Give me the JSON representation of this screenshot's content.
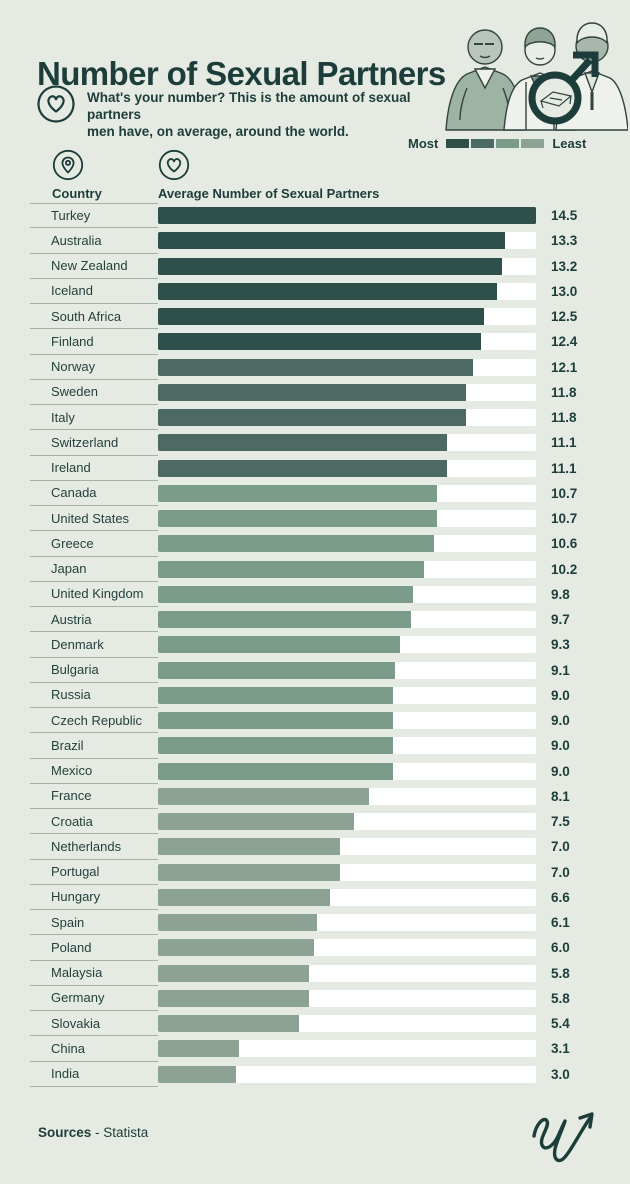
{
  "header": {
    "title": "Number of Sexual Partners",
    "subtitle_line1": "What's your number? This is the amount of sexual partners",
    "subtitle_line2": "men have, on average, around the world."
  },
  "legend": {
    "most_label": "Most",
    "least_label": "Least",
    "colors": [
      "#2E4F4A",
      "#4C6A63",
      "#7B9C8A",
      "#8BA294"
    ]
  },
  "columns": {
    "country_label": "Country",
    "value_label": "Average Number of Sexual Partners"
  },
  "colors": {
    "background": "#E5EAE2",
    "ink": "#1D3D3B",
    "bar_track": "#FFFFFF",
    "divider": "#A5B1A8"
  },
  "footer": {
    "sources_label": "Sources",
    "sources_value": "- Statista"
  },
  "chart_data": {
    "type": "bar",
    "orientation": "horizontal",
    "title": "Number of Sexual Partners",
    "xlabel": "Average Number of Sexual Partners",
    "ylabel": "Country",
    "xlim": [
      0,
      14.5
    ],
    "grid": false,
    "legend": {
      "position": "top-right",
      "entries": [
        "Most",
        "Least"
      ]
    },
    "categories": [
      "Turkey",
      "Australia",
      "New Zealand",
      "Iceland",
      "South Africa",
      "Finland",
      "Norway",
      "Sweden",
      "Italy",
      "Switzerland",
      "Ireland",
      "Canada",
      "United States",
      "Greece",
      "Japan",
      "United Kingdom",
      "Austria",
      "Denmark",
      "Bulgaria",
      "Russia",
      "Czech Republic",
      "Brazil",
      "Mexico",
      "France",
      "Croatia",
      "Netherlands",
      "Portugal",
      "Hungary",
      "Spain",
      "Poland",
      "Malaysia",
      "Germany",
      "Slovakia",
      "China",
      "India"
    ],
    "values": [
      14.5,
      13.3,
      13.2,
      13.0,
      12.5,
      12.4,
      12.1,
      11.8,
      11.8,
      11.1,
      11.1,
      10.7,
      10.7,
      10.6,
      10.2,
      9.8,
      9.7,
      9.3,
      9.1,
      9.0,
      9.0,
      9.0,
      9.0,
      8.1,
      7.5,
      7.0,
      7.0,
      6.6,
      6.1,
      6.0,
      5.8,
      5.8,
      5.4,
      3.1,
      3.0
    ],
    "value_labels": [
      "14.5",
      "13.3",
      "13.2",
      "13.0",
      "12.5",
      "12.4",
      "12.1",
      "11.8",
      "11.8",
      "11.1",
      "11.1",
      "10.7",
      "10.7",
      "10.6",
      "10.2",
      "9.8",
      "9.7",
      "9.3",
      "9.1",
      "9.0",
      "9.0",
      "9.0",
      "9.0",
      "8.1",
      "7.5",
      "7.0",
      "7.0",
      "6.6",
      "6.1",
      "6.0",
      "5.8",
      "5.8",
      "5.4",
      "3.1",
      "3.0"
    ],
    "tiers": [
      1,
      1,
      1,
      1,
      1,
      1,
      2,
      2,
      2,
      2,
      2,
      3,
      3,
      3,
      3,
      3,
      3,
      3,
      3,
      3,
      3,
      3,
      3,
      4,
      4,
      4,
      4,
      4,
      4,
      4,
      4,
      4,
      4,
      4,
      4
    ]
  }
}
